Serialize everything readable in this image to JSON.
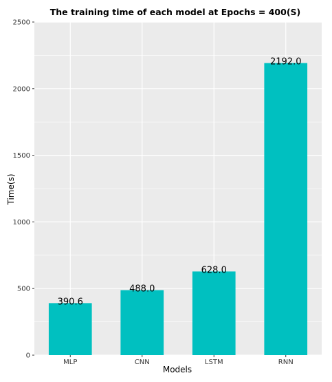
{
  "chart_data": {
    "type": "bar",
    "title": "The training time of each model at Epochs = 400(S)",
    "xlabel": "Models",
    "ylabel": "Time(s)",
    "categories": [
      "MLP",
      "CNN",
      "LSTM",
      "RNN"
    ],
    "values": [
      390.6,
      488.0,
      628.0,
      2192.0
    ],
    "data_labels": [
      "390.6",
      "488.0",
      "628.0",
      "2192.0"
    ],
    "ylim": [
      0,
      2500
    ],
    "yticks": [
      0,
      500,
      1000,
      1500,
      2000,
      2500
    ],
    "ytick_labels": [
      "0",
      "500",
      "1000",
      "1500",
      "2000",
      "2500"
    ],
    "grid": true,
    "bar_color": "#00c0c0",
    "panel_background": "#ebebeb",
    "grid_color": "#ffffff"
  }
}
